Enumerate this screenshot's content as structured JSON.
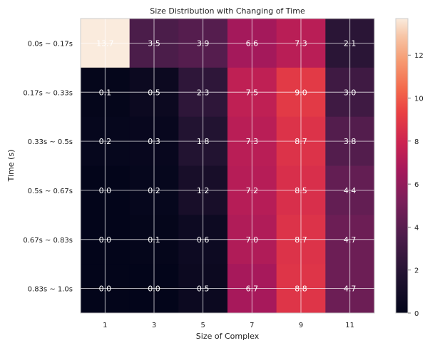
{
  "chart_data": {
    "type": "heatmap",
    "title": "Size Distribution with Changing of Time",
    "xlabel": "Size of Complex",
    "ylabel": "Time (s)",
    "x_categories": [
      "1",
      "3",
      "5",
      "7",
      "9",
      "11"
    ],
    "y_categories": [
      "0.0s ~ 0.17s",
      "0.17s ~ 0.33s",
      "0.33s ~ 0.5s",
      "0.5s ~ 0.67s",
      "0.67s ~ 0.83s",
      "0.83s ~ 1.0s"
    ],
    "values": [
      [
        13.7,
        3.5,
        3.9,
        6.6,
        7.3,
        2.1
      ],
      [
        0.1,
        0.5,
        2.3,
        7.5,
        9.0,
        3.0
      ],
      [
        0.2,
        0.3,
        1.8,
        7.3,
        8.7,
        3.8
      ],
      [
        0.0,
        0.2,
        1.2,
        7.2,
        8.5,
        4.4
      ],
      [
        0.0,
        0.1,
        0.6,
        7.0,
        8.7,
        4.7
      ],
      [
        0.0,
        0.0,
        0.5,
        6.7,
        8.8,
        4.7
      ]
    ],
    "value_labels": [
      [
        "13.7",
        "3.5",
        "3.9",
        "6.6",
        "7.3",
        "2.1"
      ],
      [
        "0.1",
        "0.5",
        "2.3",
        "7.5",
        "9.0",
        "3.0"
      ],
      [
        "0.2",
        "0.3",
        "1.8",
        "7.3",
        "8.7",
        "3.8"
      ],
      [
        "0.0",
        "0.2",
        "1.2",
        "7.2",
        "8.5",
        "4.4"
      ],
      [
        "0.0",
        "0.1",
        "0.6",
        "7.0",
        "8.7",
        "4.7"
      ],
      [
        "0.0",
        "0.0",
        "0.5",
        "6.7",
        "8.8",
        "4.7"
      ]
    ],
    "colorbar": {
      "range": [
        0,
        13.7
      ],
      "ticks": [
        "0",
        "2",
        "4",
        "6",
        "8",
        "10",
        "12"
      ],
      "colormap": "rocket"
    },
    "grid": true
  }
}
